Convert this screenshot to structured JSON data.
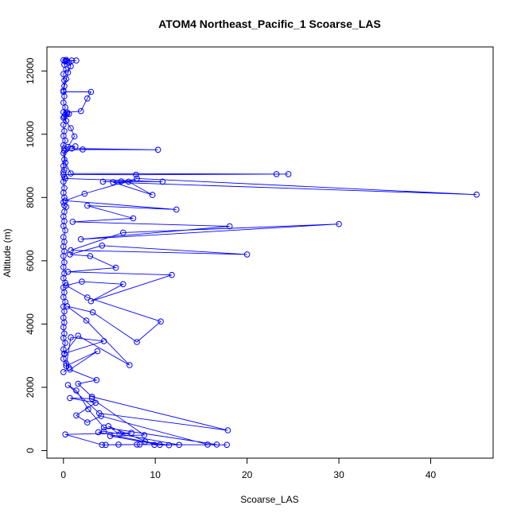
{
  "chart_data": {
    "type": "line",
    "title": "ATOM4 Northeast_Pacific_1 Scoarse_LAS",
    "xlabel": "Scoarse_LAS",
    "ylabel": "Altitude (m)",
    "xlim": [
      -1.8,
      46.8
    ],
    "ylim": [
      -240,
      12760
    ],
    "xticks": [
      0,
      10,
      20,
      30,
      40
    ],
    "yticks": [
      0,
      2000,
      4000,
      6000,
      8000,
      10000,
      12000
    ],
    "grid": false,
    "legend": "none",
    "line_color": "#0000ff",
    "marker": "open-circle",
    "series": [
      {
        "name": "",
        "points": [
          [
            0.3,
            12350
          ],
          [
            0.9,
            12330
          ],
          [
            1.4,
            12330
          ],
          [
            0.2,
            12300
          ],
          [
            0.6,
            12260
          ],
          [
            0.8,
            12150
          ],
          [
            0.5,
            11950
          ],
          [
            0.3,
            11750
          ],
          [
            0.1,
            11520
          ],
          [
            0.0,
            11340
          ],
          [
            3.0,
            11340
          ],
          [
            2.6,
            11130
          ],
          [
            1.9,
            10730
          ],
          [
            0.4,
            10690
          ],
          [
            0.2,
            10620
          ],
          [
            0.0,
            10520
          ],
          [
            0.8,
            10190
          ],
          [
            1.2,
            9930
          ],
          [
            0.5,
            9600
          ],
          [
            1.3,
            9620
          ],
          [
            0.9,
            9550
          ],
          [
            10.3,
            9510
          ],
          [
            2.1,
            9520
          ],
          [
            0.1,
            9480
          ],
          [
            0.2,
            9100
          ],
          [
            0.8,
            8760
          ],
          [
            24.5,
            8740
          ],
          [
            23.2,
            8740
          ],
          [
            7.9,
            8720
          ],
          [
            0.0,
            8730
          ],
          [
            0.2,
            8600
          ],
          [
            10.8,
            8500
          ],
          [
            6.3,
            8510
          ],
          [
            4.3,
            8500
          ],
          [
            7.1,
            8500
          ],
          [
            9.7,
            8080
          ],
          [
            5.4,
            8480
          ],
          [
            45.0,
            8090
          ],
          [
            8.0,
            8600
          ],
          [
            2.3,
            8120
          ],
          [
            0.2,
            7900
          ],
          [
            12.3,
            7620
          ],
          [
            2.6,
            7740
          ],
          [
            7.6,
            7340
          ],
          [
            1.0,
            7230
          ],
          [
            18.1,
            7090
          ],
          [
            1.9,
            6680
          ],
          [
            30.0,
            7160
          ],
          [
            6.5,
            6890
          ],
          [
            0.8,
            6330
          ],
          [
            20.0,
            6200
          ],
          [
            4.2,
            6480
          ],
          [
            0.7,
            6200
          ],
          [
            2.9,
            6150
          ],
          [
            5.7,
            5780
          ],
          [
            0.5,
            5650
          ],
          [
            11.8,
            5550
          ],
          [
            3.0,
            4720
          ],
          [
            6.5,
            5260
          ],
          [
            2.0,
            5340
          ],
          [
            0.3,
            5220
          ],
          [
            2.6,
            4840
          ],
          [
            10.6,
            4080
          ],
          [
            8.0,
            3430
          ],
          [
            3.2,
            4370
          ],
          [
            0.4,
            4560
          ],
          [
            2.5,
            4110
          ],
          [
            7.2,
            2700
          ],
          [
            1.6,
            3630
          ],
          [
            0.1,
            3070
          ],
          [
            4.4,
            3460
          ],
          [
            0.8,
            3580
          ],
          [
            0.3,
            2680
          ],
          [
            3.7,
            3140
          ],
          [
            0.7,
            2560
          ],
          [
            3.6,
            2230
          ],
          [
            1.6,
            2110
          ],
          [
            3.1,
            1700
          ],
          [
            17.9,
            640
          ],
          [
            3.9,
            1180
          ],
          [
            0.5,
            2070
          ],
          [
            1.4,
            1900
          ],
          [
            2.7,
            1310
          ],
          [
            4.4,
            730
          ],
          [
            16.7,
            190
          ],
          [
            15.7,
            190
          ],
          [
            4.1,
            1090
          ],
          [
            2.6,
            890
          ],
          [
            1.4,
            1110
          ],
          [
            3.5,
            1510
          ],
          [
            0.7,
            1660
          ],
          [
            3.1,
            1640
          ],
          [
            8.8,
            490
          ],
          [
            5.1,
            460
          ],
          [
            10.5,
            180
          ],
          [
            12.6,
            180
          ],
          [
            4.4,
            610
          ],
          [
            3.8,
            580
          ],
          [
            8.9,
            280
          ],
          [
            11.5,
            170
          ],
          [
            9.9,
            180
          ],
          [
            4.9,
            770
          ],
          [
            6.1,
            510
          ],
          [
            7.4,
            560
          ],
          [
            0.2,
            510
          ],
          [
            4.2,
            180
          ],
          [
            8.0,
            190
          ],
          [
            4.6,
            180
          ],
          [
            6.0,
            190
          ],
          [
            8.3,
            190
          ],
          [
            17.8,
            180
          ]
        ]
      },
      {
        "name": "",
        "points": [
          [
            0.0,
            12340
          ],
          [
            0.2,
            12320
          ],
          [
            0.4,
            12310
          ],
          [
            0.1,
            12200
          ],
          [
            0.3,
            12050
          ],
          [
            0.0,
            11900
          ],
          [
            0.1,
            11700
          ],
          [
            0.0,
            11380
          ],
          [
            0.1,
            11200
          ],
          [
            0.0,
            11000
          ],
          [
            0.2,
            10850
          ],
          [
            0.0,
            10700
          ],
          [
            0.4,
            10650
          ],
          [
            0.6,
            10640
          ],
          [
            0.1,
            10550
          ],
          [
            0.3,
            10420
          ],
          [
            0.0,
            10300
          ],
          [
            0.1,
            10100
          ],
          [
            0.0,
            9950
          ],
          [
            0.2,
            9800
          ],
          [
            0.0,
            9650
          ],
          [
            0.1,
            9560
          ],
          [
            0.3,
            9520
          ],
          [
            0.0,
            9400
          ],
          [
            0.1,
            9200
          ],
          [
            0.0,
            9000
          ],
          [
            0.1,
            8880
          ],
          [
            0.0,
            8800
          ],
          [
            0.1,
            8650
          ],
          [
            0.0,
            8500
          ],
          [
            0.1,
            8300
          ],
          [
            0.0,
            8150
          ],
          [
            0.1,
            8000
          ],
          [
            0.0,
            7850
          ],
          [
            0.1,
            7750
          ],
          [
            0.3,
            7700
          ],
          [
            0.1,
            7550
          ],
          [
            0.0,
            7400
          ],
          [
            0.1,
            7250
          ],
          [
            0.0,
            7100
          ],
          [
            0.2,
            6960
          ],
          [
            0.0,
            6750
          ],
          [
            0.1,
            6600
          ],
          [
            0.0,
            6450
          ],
          [
            0.1,
            6300
          ],
          [
            0.0,
            6150
          ],
          [
            0.1,
            5950
          ],
          [
            0.0,
            5800
          ],
          [
            0.1,
            5600
          ],
          [
            0.0,
            5450
          ],
          [
            0.2,
            5300
          ],
          [
            0.0,
            5150
          ],
          [
            0.1,
            5000
          ],
          [
            0.0,
            4850
          ],
          [
            0.2,
            4700
          ],
          [
            0.0,
            4550
          ],
          [
            0.1,
            4400
          ],
          [
            0.0,
            4200
          ],
          [
            0.1,
            4050
          ],
          [
            0.0,
            3900
          ],
          [
            0.1,
            3700
          ],
          [
            0.0,
            3560
          ],
          [
            0.2,
            3400
          ],
          [
            0.0,
            3200
          ],
          [
            0.1,
            3050
          ],
          [
            0.0,
            2900
          ],
          [
            0.3,
            2750
          ],
          [
            0.6,
            2620
          ],
          [
            0.0,
            2480
          ]
        ]
      }
    ]
  }
}
